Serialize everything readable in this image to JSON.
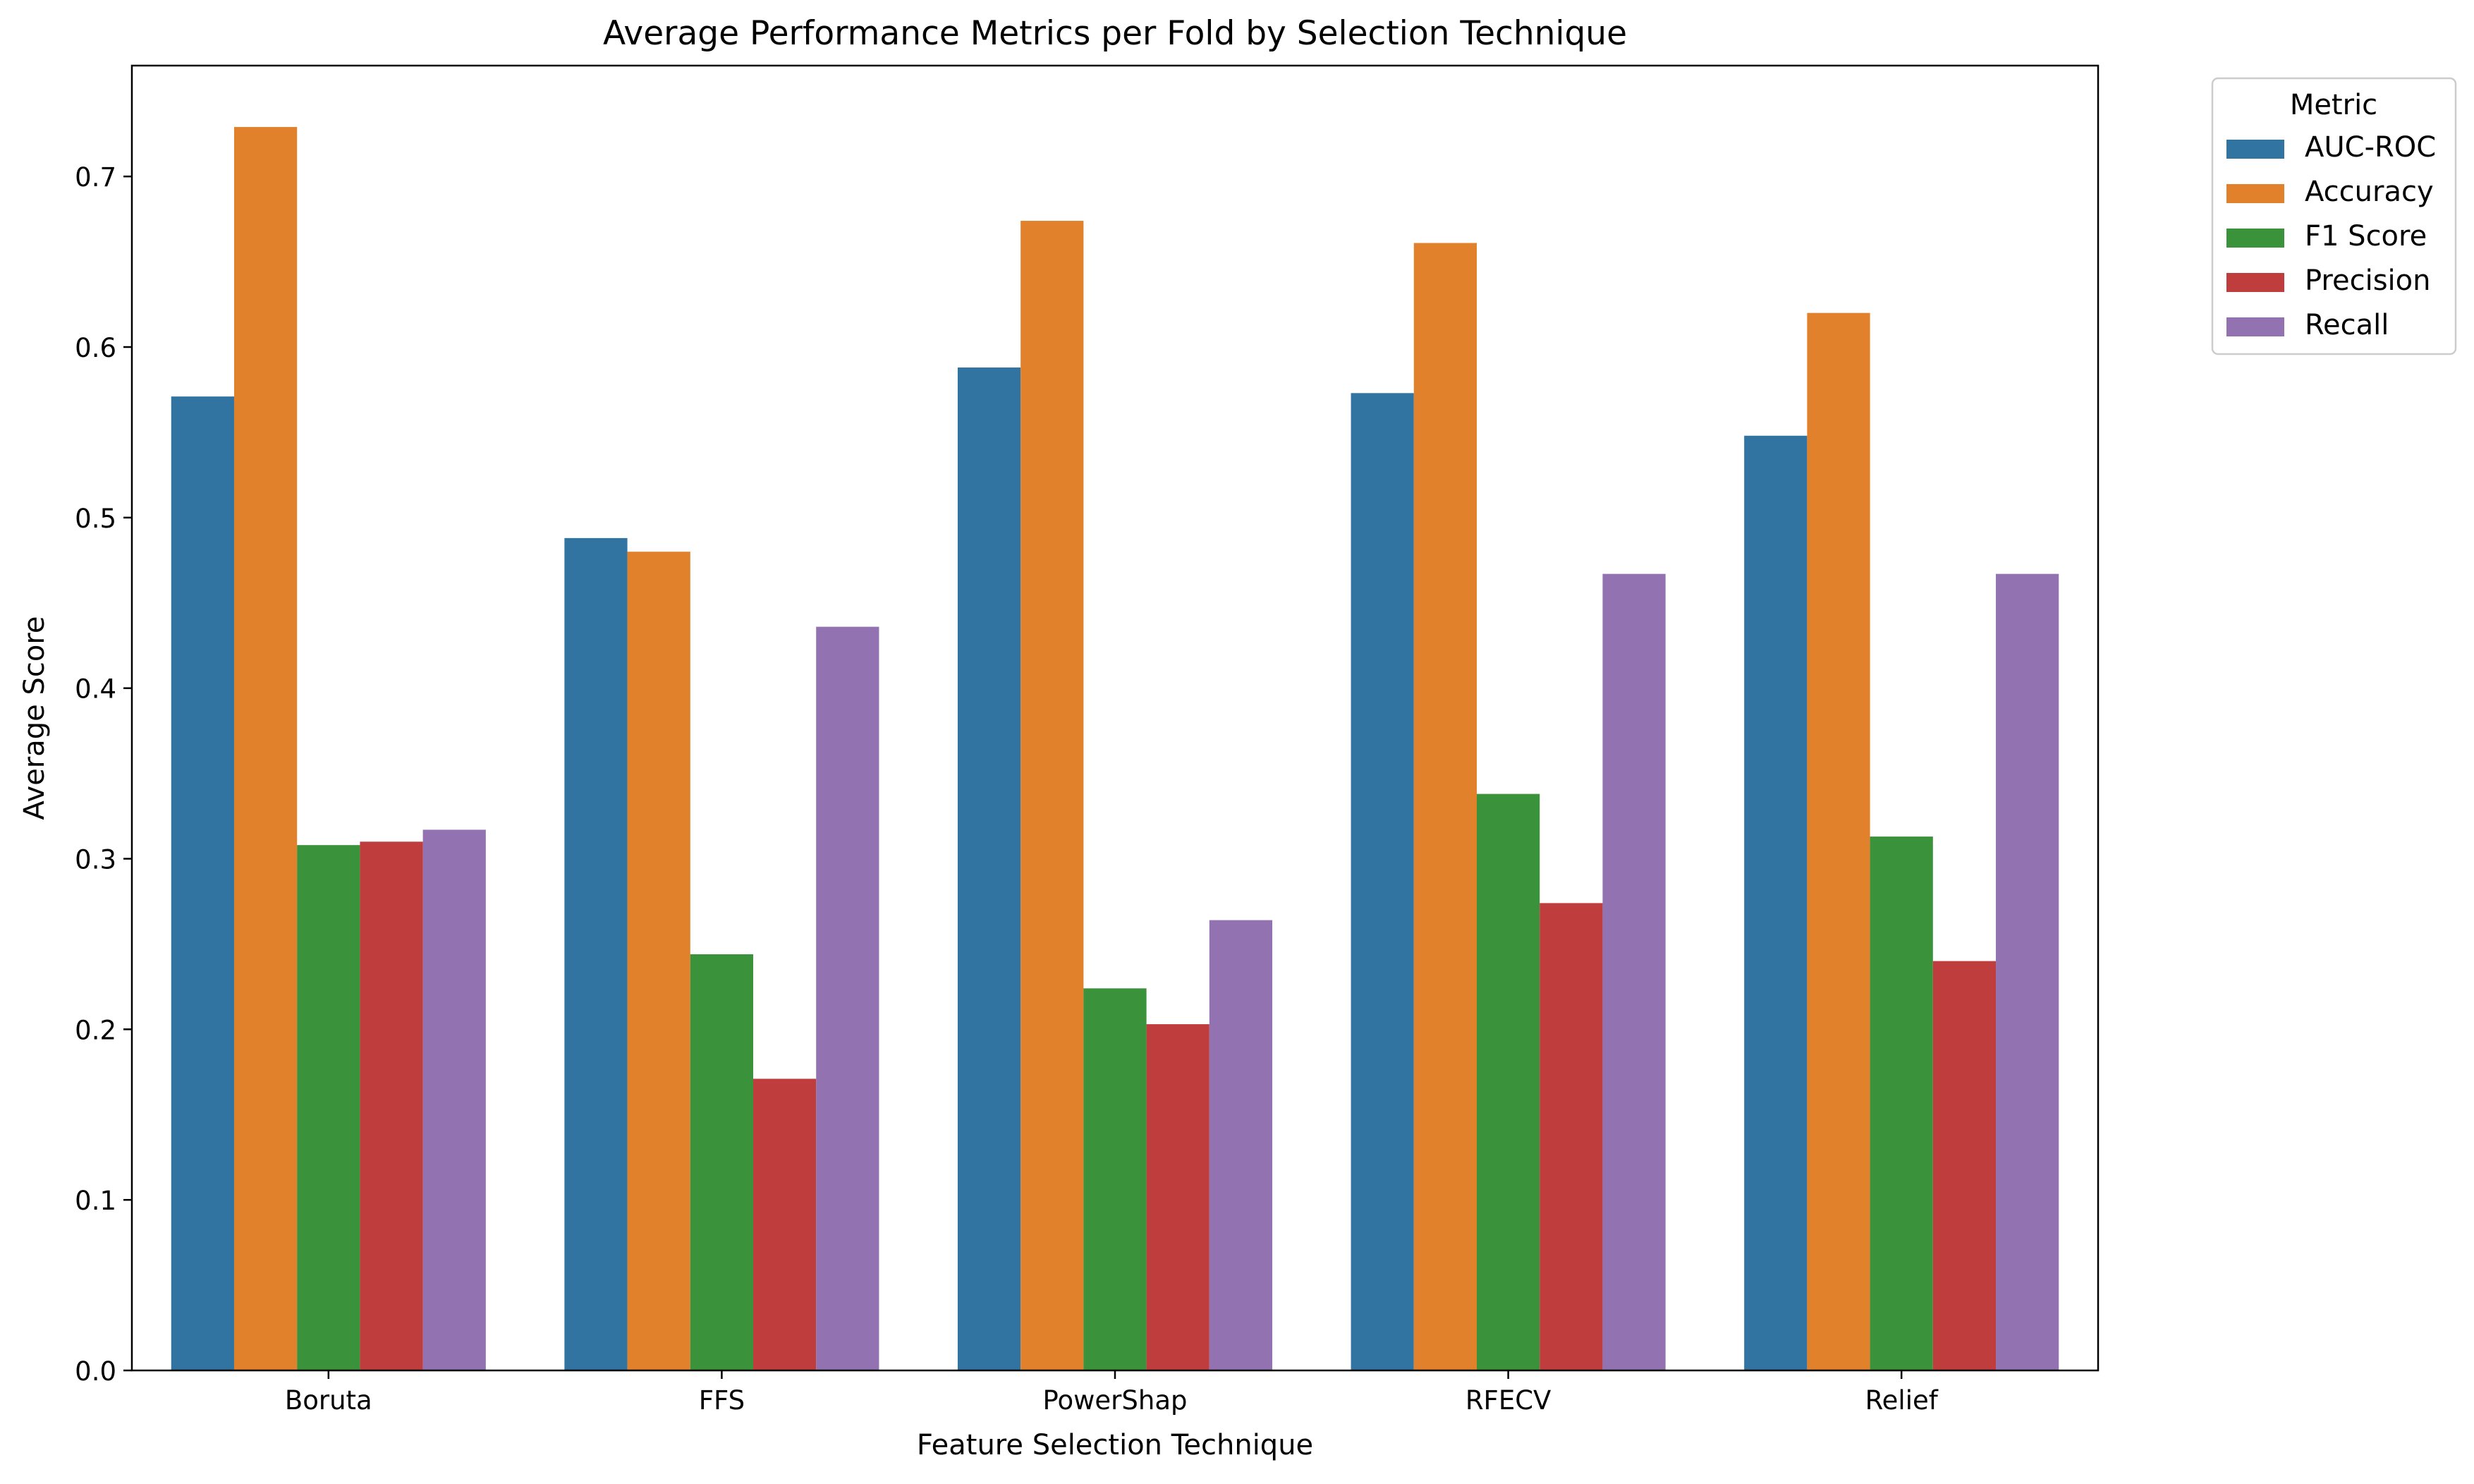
{
  "chart_data": {
    "type": "bar",
    "title": "Average Performance Metrics per Fold by Selection Technique",
    "xlabel": "Feature Selection Technique",
    "ylabel": "Average Score",
    "categories": [
      "Boruta",
      "FFS",
      "PowerShap",
      "RFECV",
      "Relief"
    ],
    "ylim": [
      0,
      0.765
    ],
    "yticks": [
      "0.0",
      "0.1",
      "0.2",
      "0.3",
      "0.4",
      "0.5",
      "0.6",
      "0.7"
    ],
    "grid": false,
    "legend": {
      "title": "Metric",
      "placement": "outside-top-right"
    },
    "series": [
      {
        "name": "AUC-ROC",
        "color": "#3274a1",
        "values": [
          0.571,
          0.488,
          0.588,
          0.573,
          0.548
        ]
      },
      {
        "name": "Accuracy",
        "color": "#e1812c",
        "values": [
          0.729,
          0.48,
          0.674,
          0.661,
          0.62
        ]
      },
      {
        "name": "F1 Score",
        "color": "#3a923a",
        "values": [
          0.308,
          0.244,
          0.224,
          0.338,
          0.313
        ]
      },
      {
        "name": "Precision",
        "color": "#c03d3e",
        "values": [
          0.31,
          0.171,
          0.203,
          0.274,
          0.24
        ]
      },
      {
        "name": "Recall",
        "color": "#9372b2",
        "values": [
          0.317,
          0.436,
          0.264,
          0.467,
          0.467
        ]
      }
    ]
  }
}
